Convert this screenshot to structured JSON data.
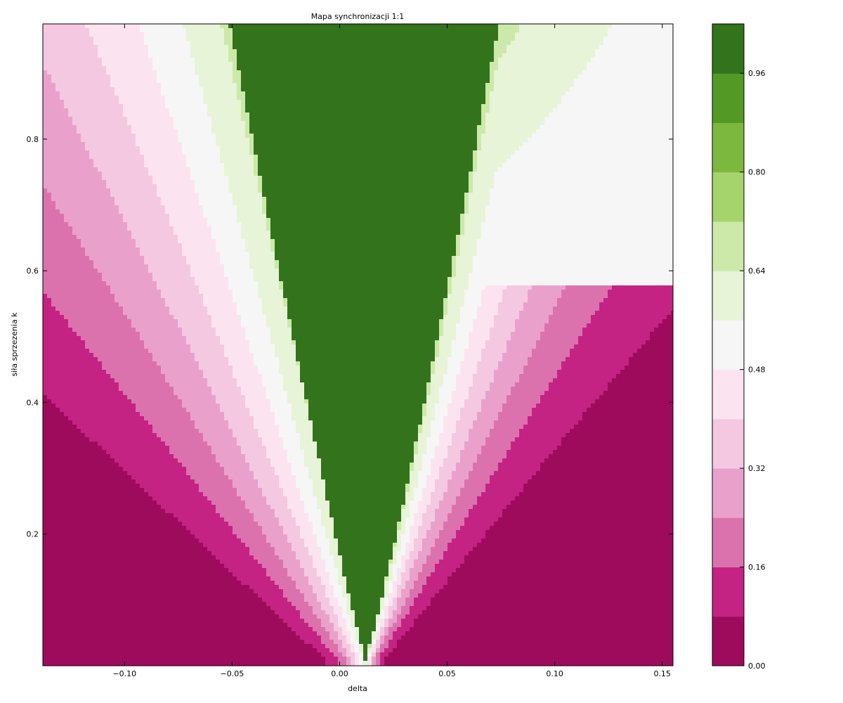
{
  "chart_data": {
    "type": "heatmap",
    "title": "Mapa synchronizacji 1:1",
    "xlabel": "delta",
    "ylabel": "siła sprzezenia k",
    "xlim": [
      -0.138,
      0.155
    ],
    "ylim": [
      0.0,
      0.975
    ],
    "x_ticks": [
      {
        "value": -0.1,
        "label": "−0.10"
      },
      {
        "value": -0.05,
        "label": "−0.05"
      },
      {
        "value": 0.0,
        "label": "0.00"
      },
      {
        "value": 0.05,
        "label": "0.05"
      },
      {
        "value": 0.1,
        "label": "0.10"
      },
      {
        "value": 0.15,
        "label": "0.15"
      }
    ],
    "y_ticks": [
      {
        "value": 0.2,
        "label": "0.2"
      },
      {
        "value": 0.4,
        "label": "0.4"
      },
      {
        "value": 0.6,
        "label": "0.6"
      },
      {
        "value": 0.8,
        "label": "0.8"
      }
    ],
    "colorbar": {
      "levels": [
        0.0,
        0.08,
        0.16,
        0.24,
        0.32,
        0.4,
        0.48,
        0.56,
        0.64,
        0.72,
        0.8,
        0.88,
        0.96,
        1.04
      ],
      "colors": [
        "#9e0b5d",
        "#c42383",
        "#dc72ad",
        "#e9a1cb",
        "#f4c8e1",
        "#fbe4ef",
        "#f6f6f6",
        "#e7f4d8",
        "#cce9aa",
        "#a5d46c",
        "#7cb83e",
        "#529a25",
        "#33731c"
      ],
      "tick_labels": [
        {
          "value": 0.0,
          "label": "0.00"
        },
        {
          "value": 0.16,
          "label": "0.16"
        },
        {
          "value": 0.32,
          "label": "0.32"
        },
        {
          "value": 0.48,
          "label": "0.48"
        },
        {
          "value": 0.64,
          "label": "0.64"
        },
        {
          "value": 0.8,
          "label": "0.80"
        },
        {
          "value": 0.96,
          "label": "0.96"
        }
      ]
    },
    "grid": false,
    "legend": "colorbar-right",
    "description": "Arnold tongue: synchronized region (value ~1) is a V shape with apex near delta=0.012, k=0.01; left edge x=-0.051 at k=0.975, right edge x=0.074 at k=0.975; value falls off toward 0 far from the tongue."
  }
}
